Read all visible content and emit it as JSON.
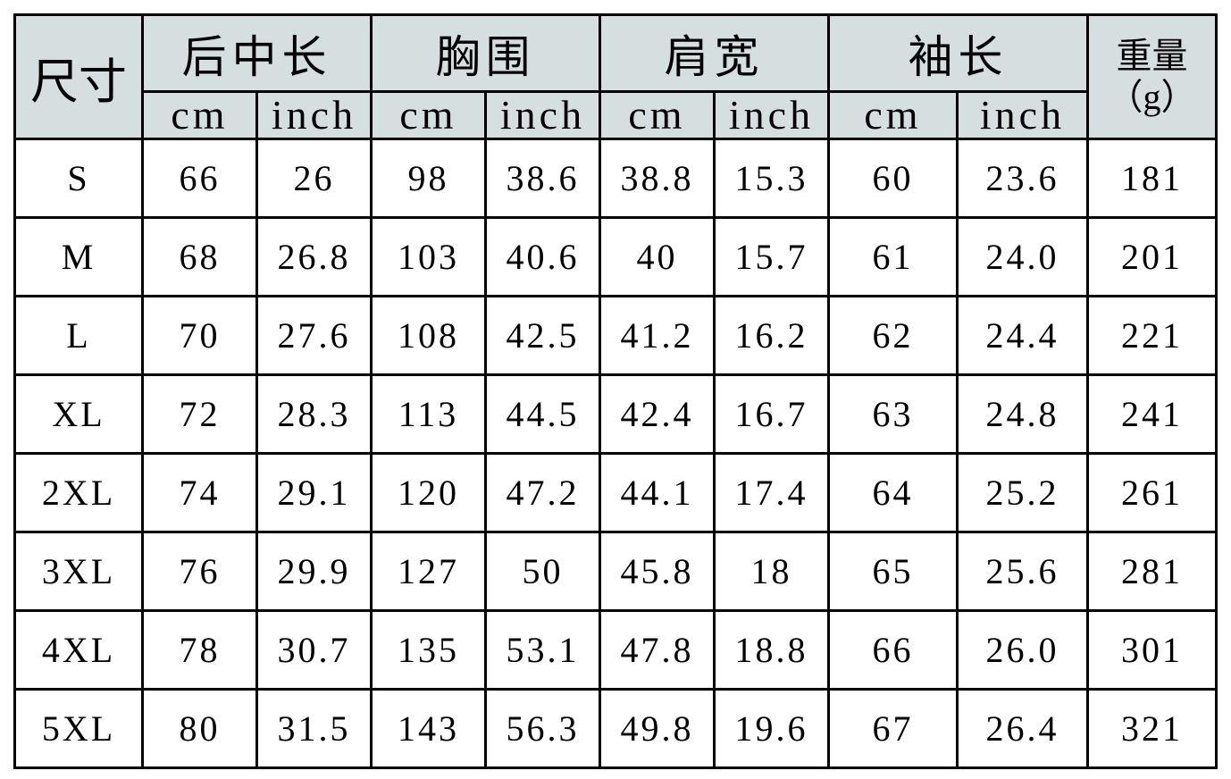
{
  "header": {
    "size": "尺寸",
    "groups": [
      "后中长",
      "胸围",
      "肩宽",
      "袖长"
    ],
    "weight_line1": "重量",
    "weight_line2": "（g）",
    "unit_cm": "cm",
    "unit_inch": "inch"
  },
  "rows": [
    [
      "S",
      "66",
      "26",
      "98",
      "38.6",
      "38.8",
      "15.3",
      "60",
      "23.6",
      "181"
    ],
    [
      "M",
      "68",
      "26.8",
      "103",
      "40.6",
      "40",
      "15.7",
      "61",
      "24.0",
      "201"
    ],
    [
      "L",
      "70",
      "27.6",
      "108",
      "42.5",
      "41.2",
      "16.2",
      "62",
      "24.4",
      "221"
    ],
    [
      "XL",
      "72",
      "28.3",
      "113",
      "44.5",
      "42.4",
      "16.7",
      "63",
      "24.8",
      "241"
    ],
    [
      "2XL",
      "74",
      "29.1",
      "120",
      "47.2",
      "44.1",
      "17.4",
      "64",
      "25.2",
      "261"
    ],
    [
      "3XL",
      "76",
      "29.9",
      "127",
      "50",
      "45.8",
      "18",
      "65",
      "25.6",
      "281"
    ],
    [
      "4XL",
      "78",
      "30.7",
      "135",
      "53.1",
      "47.8",
      "18.8",
      "66",
      "26.0",
      "301"
    ],
    [
      "5XL",
      "80",
      "31.5",
      "143",
      "56.3",
      "49.8",
      "19.6",
      "67",
      "26.4",
      "321"
    ]
  ],
  "colors": {
    "header_bg": "#d6dfdf",
    "border": "#000000"
  }
}
